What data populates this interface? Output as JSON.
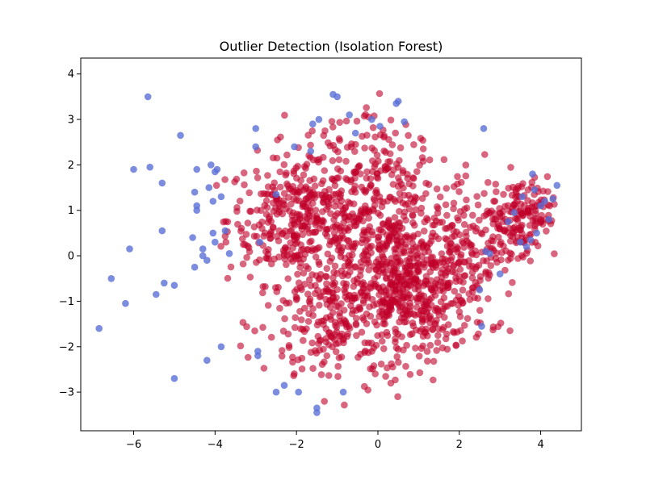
{
  "chart_data": {
    "type": "scatter",
    "title": "Outlier Detection (Isolation Forest)",
    "xlabel": "",
    "ylabel": "",
    "xlim": [
      -7.3,
      5.0
    ],
    "ylim": [
      -3.85,
      4.35
    ],
    "x_ticks": [
      -6,
      -4,
      -2,
      0,
      2,
      4
    ],
    "y_ticks": [
      -3,
      -2,
      -1,
      0,
      1,
      2,
      3,
      4
    ],
    "grid": false,
    "legend": "none",
    "colors": {
      "inlier": "#c0002a",
      "outlier": "#5b6fd6"
    },
    "point_opacity": 0.6,
    "outliers": {
      "x": [
        -6.85,
        -6.55,
        -6.2,
        -6.1,
        -6.0,
        -5.65,
        -5.6,
        -5.45,
        -5.3,
        -5.3,
        -5.25,
        -5.0,
        -5.0,
        -4.85,
        -4.55,
        -4.5,
        -4.5,
        -4.45,
        -4.45,
        -4.45,
        -4.3,
        -4.3,
        -4.2,
        -4.2,
        -4.15,
        -4.1,
        -4.05,
        -4.05,
        -4.0,
        -4.0,
        -3.95,
        -3.85,
        -3.85,
        -3.75,
        -3.65,
        -3.0,
        -3.0,
        -2.95,
        -2.95,
        -2.9,
        -2.5,
        -2.5,
        -2.3,
        -2.05,
        -1.95,
        -1.65,
        -1.6,
        -1.5,
        -1.5,
        -1.45,
        -1.1,
        -1.0,
        -0.85,
        -0.7,
        -0.55,
        -0.15,
        0.05,
        0.45,
        0.5,
        0.65,
        2.5,
        2.55,
        2.6,
        2.65,
        2.75,
        3.0,
        3.2,
        3.35,
        3.5,
        3.55,
        3.65,
        3.75,
        3.8,
        3.85,
        3.9,
        4.0,
        4.1,
        4.2,
        4.3,
        4.4
      ],
      "y": [
        -1.6,
        -0.5,
        -1.05,
        0.15,
        1.9,
        3.5,
        1.95,
        -0.85,
        1.6,
        0.55,
        -0.6,
        -2.7,
        -0.65,
        2.65,
        0.4,
        -0.25,
        1.4,
        1.9,
        1.1,
        1.0,
        0.15,
        0.0,
        -0.1,
        -2.3,
        1.5,
        2.0,
        1.2,
        0.5,
        1.85,
        0.3,
        1.9,
        -2.0,
        1.3,
        0.55,
        0.05,
        2.8,
        2.4,
        -2.2,
        -2.1,
        0.3,
        1.35,
        -3.0,
        -2.85,
        2.4,
        -3.0,
        2.3,
        2.9,
        -3.35,
        -3.45,
        3.0,
        3.55,
        3.5,
        -3.0,
        3.1,
        2.7,
        3.0,
        2.85,
        3.35,
        3.4,
        2.95,
        -0.75,
        -1.55,
        2.8,
        0.1,
        0.05,
        -0.4,
        0.75,
        0.95,
        0.3,
        1.3,
        0.2,
        0.35,
        1.8,
        1.45,
        0.5,
        1.1,
        1.2,
        0.8,
        1.25,
        1.55
      ]
    }
  }
}
